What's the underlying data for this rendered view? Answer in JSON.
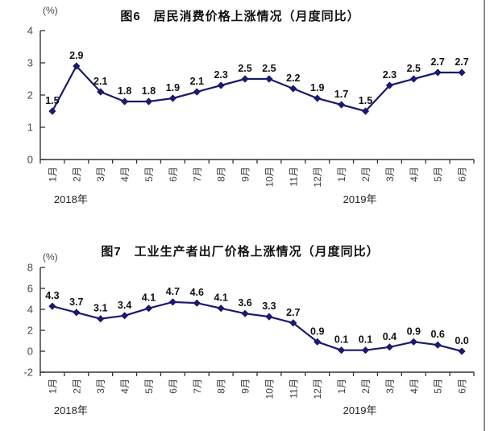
{
  "colors": {
    "line": "#1a1a6e",
    "marker": "#1a1a6e",
    "data_label": "#111111",
    "axis": "#333333",
    "tick_label": "#4a4a4a",
    "month_label": "#3c3c3c",
    "year_label": "#222222",
    "title": "#111111",
    "right_border": "#8c8c8c"
  },
  "chart_data": [
    {
      "type": "line",
      "title": "图6　居民消费价格上涨情况（月度同比）",
      "ylabel": "(%)",
      "legend_position": "none",
      "grid": false,
      "categories": [
        "1月",
        "2月",
        "3月",
        "4月",
        "5月",
        "6月",
        "7月",
        "8月",
        "9月",
        "10月",
        "11月",
        "12月",
        "1月",
        "2月",
        "3月",
        "4月",
        "5月",
        "6月"
      ],
      "values": [
        1.5,
        2.9,
        2.1,
        1.8,
        1.8,
        1.9,
        2.1,
        2.3,
        2.5,
        2.5,
        2.2,
        1.9,
        1.7,
        1.5,
        2.3,
        2.5,
        2.7,
        2.7
      ],
      "ylim": [
        0,
        4
      ],
      "yticks": [
        0,
        1,
        2,
        3,
        4
      ],
      "year_labels": [
        {
          "text": "2018年",
          "between": [
            0,
            1
          ]
        },
        {
          "text": "2019年",
          "between": [
            12,
            13
          ]
        }
      ]
    },
    {
      "type": "line",
      "title": "图7　工业生产者出厂价格上涨情况（月度同比）",
      "ylabel": "(%)",
      "legend_position": "none",
      "grid": false,
      "categories": [
        "1月",
        "2月",
        "3月",
        "4月",
        "5月",
        "6月",
        "7月",
        "8月",
        "9月",
        "10月",
        "11月",
        "12月",
        "1月",
        "2月",
        "3月",
        "4月",
        "5月",
        "6月"
      ],
      "values": [
        4.3,
        3.7,
        3.1,
        3.4,
        4.1,
        4.7,
        4.6,
        4.1,
        3.6,
        3.3,
        2.7,
        0.9,
        0.1,
        0.1,
        0.4,
        0.9,
        0.6,
        0.0
      ],
      "ylim": [
        -2,
        8
      ],
      "yticks": [
        -2,
        0,
        2,
        4,
        6,
        8
      ],
      "year_labels": [
        {
          "text": "2018年",
          "between": [
            0,
            1
          ]
        },
        {
          "text": "2019年",
          "between": [
            12,
            13
          ]
        }
      ]
    }
  ]
}
